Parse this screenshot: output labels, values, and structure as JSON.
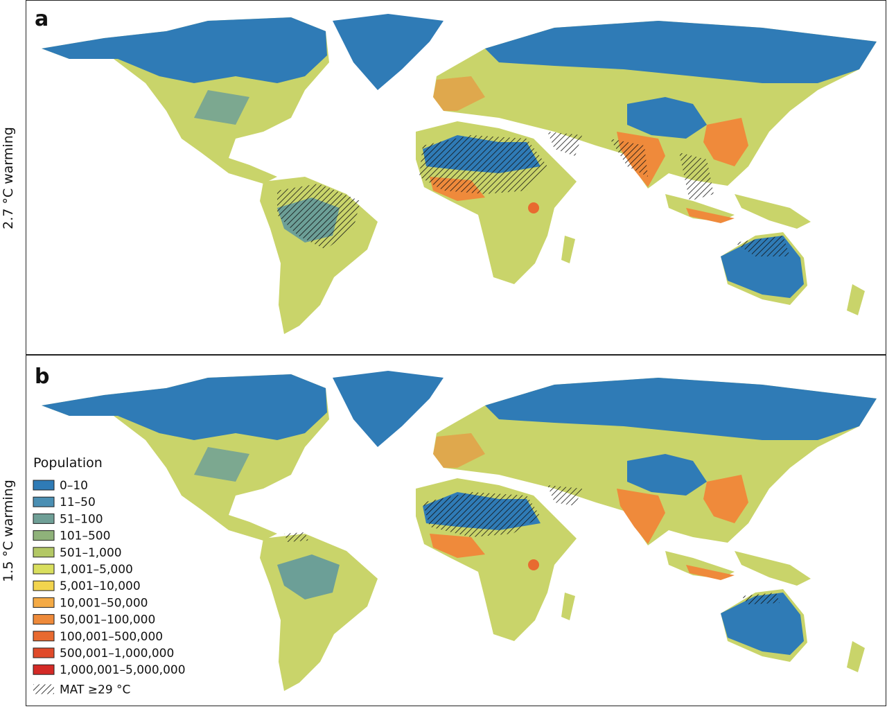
{
  "panels": [
    {
      "label": "a",
      "side_label": "2.7 °C warming"
    },
    {
      "label": "b",
      "side_label": "1.5 °C warming"
    }
  ],
  "legend": {
    "title": "Population",
    "items": [
      {
        "label": "0–10",
        "color": "#2f7bb6"
      },
      {
        "label": "11–50",
        "color": "#4b8fb3"
      },
      {
        "label": "51–100",
        "color": "#6f9f96"
      },
      {
        "label": "101–500",
        "color": "#8fb27a"
      },
      {
        "label": "501–1,000",
        "color": "#b3c865"
      },
      {
        "label": "1,001–5,000",
        "color": "#d9df5e"
      },
      {
        "label": "5,001–10,000",
        "color": "#f2d44e"
      },
      {
        "label": "10,001–50,000",
        "color": "#f4aa45"
      },
      {
        "label": "50,001–100,000",
        "color": "#ee8a3a"
      },
      {
        "label": "100,001–500,000",
        "color": "#e86a30"
      },
      {
        "label": "500,001–1,000,000",
        "color": "#e04a2a"
      },
      {
        "label": "1,000,001–5,000,000",
        "color": "#d42a26"
      }
    ],
    "hatch_label": "MAT ≥29 °C"
  }
}
